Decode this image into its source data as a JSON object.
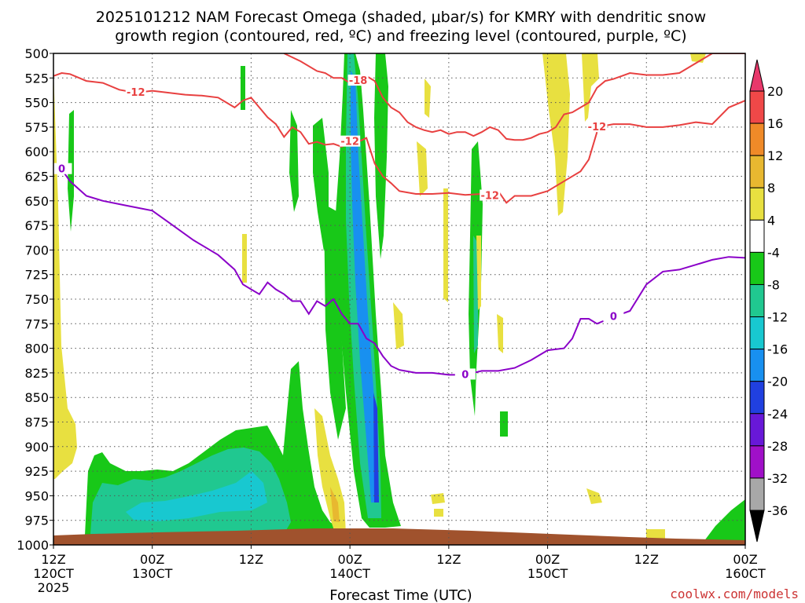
{
  "chart_data": {
    "type": "heatmap",
    "title_line1": "2025101212 NAM Forecast Omega (shaded, μbar/s) for KMRY with dendritic snow",
    "title_line2": "growth region (contoured, red, ºC) and freezing level (contoured, purple, ºC)",
    "xlabel": "Forecast Time (UTC)",
    "credit": "coolwx.com/models",
    "ylim": [
      1000,
      500
    ],
    "xlim_hours": [
      0,
      84
    ],
    "y_ticks": [
      500,
      525,
      550,
      575,
      600,
      625,
      650,
      675,
      700,
      725,
      750,
      775,
      800,
      825,
      850,
      875,
      900,
      925,
      950,
      975,
      1000
    ],
    "x_ticks": [
      {
        "h": 0,
        "time": "12Z",
        "date": "120CT",
        "year": "2025"
      },
      {
        "h": 12,
        "time": "00Z",
        "date": "130CT",
        "year": ""
      },
      {
        "h": 24,
        "time": "12Z",
        "date": "",
        "year": ""
      },
      {
        "h": 36,
        "time": "00Z",
        "date": "140CT",
        "year": ""
      },
      {
        "h": 48,
        "time": "12Z",
        "date": "",
        "year": ""
      },
      {
        "h": 60,
        "time": "00Z",
        "date": "150CT",
        "year": ""
      },
      {
        "h": 72,
        "time": "12Z",
        "date": "",
        "year": ""
      },
      {
        "h": 84,
        "time": "00Z",
        "date": "160CT",
        "year": ""
      }
    ],
    "grid": true,
    "colorbar": {
      "labels": [
        "20",
        "16",
        "12",
        "8",
        "4",
        "-4",
        "-8",
        "-12",
        "-16",
        "-20",
        "-24",
        "-28",
        "-32",
        "-36"
      ],
      "colors": [
        "#e8386b",
        "#f04848",
        "#f08a28",
        "#e8b830",
        "#e8e040",
        "#ffffff",
        "#18c818",
        "#20c890",
        "#18c8d0",
        "#1890f0",
        "#2040e0",
        "#6818d8",
        "#a010c8",
        "#a8a8a8",
        "#000000"
      ]
    },
    "freezing_level": {
      "label": "0",
      "color": "#8a00c8",
      "x": [
        0,
        1,
        2,
        4,
        6,
        9,
        12,
        14,
        17,
        20,
        22,
        23,
        24,
        25,
        26,
        27,
        28,
        29,
        30,
        31,
        32,
        33,
        34,
        35,
        36,
        37,
        38,
        39,
        40,
        41,
        42,
        44,
        46,
        48,
        50,
        52,
        54,
        56,
        58,
        60,
        62,
        63,
        64,
        65,
        66,
        68,
        70,
        72,
        74,
        76,
        78,
        80,
        82,
        84
      ],
      "y": [
        620,
        618,
        630,
        645,
        650,
        655,
        660,
        672,
        690,
        705,
        720,
        735,
        740,
        745,
        733,
        740,
        745,
        752,
        752,
        765,
        752,
        757,
        750,
        765,
        775,
        775,
        790,
        795,
        808,
        818,
        822,
        825,
        825,
        827,
        827,
        823,
        823,
        820,
        812,
        802,
        800,
        790,
        770,
        770,
        775,
        768,
        762,
        735,
        722,
        720,
        715,
        710,
        707,
        708
      ]
    },
    "dgz_top": {
      "label": "-18",
      "color": "#e84040",
      "x": [
        28,
        30,
        32,
        33,
        34,
        35,
        36,
        37,
        38,
        39,
        40,
        41,
        42,
        43,
        44,
        45,
        46,
        47,
        48,
        49,
        50,
        51,
        52,
        53,
        54,
        55,
        56,
        57,
        58,
        59,
        60,
        61,
        62,
        63,
        64,
        65,
        66,
        67,
        68,
        69,
        70,
        72,
        74,
        76,
        78,
        80,
        82,
        84
      ],
      "y": [
        500,
        508,
        518,
        520,
        525,
        525,
        530,
        528,
        523,
        528,
        545,
        555,
        560,
        570,
        575,
        578,
        580,
        578,
        582,
        580,
        580,
        584,
        580,
        575,
        578,
        587,
        588,
        588,
        586,
        582,
        580,
        575,
        562,
        560,
        555,
        550,
        535,
        528,
        526,
        523,
        520,
        522,
        522,
        520,
        510,
        500,
        500,
        500
      ]
    },
    "dgz_bottom_early": {
      "label": "-12",
      "color": "#e84040",
      "x": [
        0,
        1,
        2,
        4,
        6,
        8,
        10,
        12,
        14,
        16,
        18,
        20,
        22,
        23,
        24,
        25,
        26,
        27,
        28,
        29,
        30,
        31,
        32,
        33,
        34,
        35,
        36,
        37,
        38,
        39,
        40,
        41,
        42,
        44,
        46,
        48,
        50,
        52,
        53,
        54,
        55,
        56,
        57,
        58,
        60,
        62,
        64,
        65,
        66
      ],
      "y": [
        523,
        520,
        521,
        528,
        530,
        537,
        540,
        538,
        540,
        542,
        543,
        545,
        555,
        548,
        545,
        555,
        565,
        572,
        585,
        575,
        580,
        592,
        590,
        593,
        592,
        595,
        590,
        590,
        586,
        612,
        625,
        632,
        640,
        643,
        643,
        642,
        644,
        643,
        645,
        640,
        652,
        645,
        645,
        645,
        640,
        630,
        620,
        608,
        580
      ]
    },
    "dgz_bottom_late": {
      "label": "-12",
      "color": "#e84040",
      "x": [
        66,
        68,
        70,
        72,
        74,
        76,
        78,
        80,
        82,
        84
      ],
      "y": [
        575,
        572,
        572,
        575,
        575,
        573,
        570,
        572,
        555,
        548
      ]
    }
  }
}
